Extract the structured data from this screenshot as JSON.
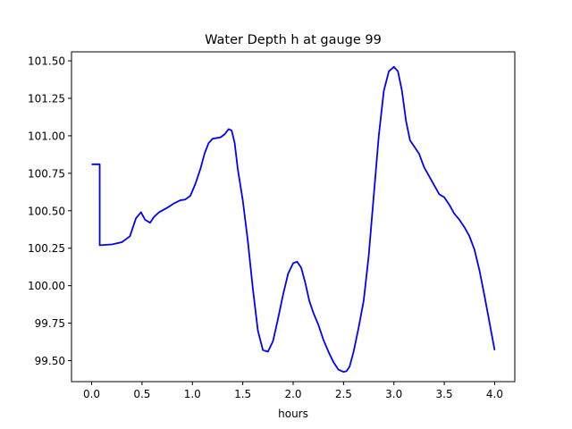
{
  "chart_data": {
    "type": "line",
    "title": "Water Depth h at gauge 99",
    "xlabel": "hours",
    "ylabel": "",
    "xlim": [
      -0.2,
      4.2
    ],
    "ylim": [
      99.36,
      101.56
    ],
    "grid": false,
    "x_ticks": [
      0.0,
      0.5,
      1.0,
      1.5,
      2.0,
      2.5,
      3.0,
      3.5,
      4.0
    ],
    "x_tick_labels": [
      "0.0",
      "0.5",
      "1.0",
      "1.5",
      "2.0",
      "2.5",
      "3.0",
      "3.5",
      "4.0"
    ],
    "y_ticks": [
      99.5,
      99.75,
      100.0,
      100.25,
      100.5,
      100.75,
      101.0,
      101.25,
      101.5
    ],
    "y_tick_labels": [
      "99.50",
      "99.75",
      "100.00",
      "100.25",
      "100.50",
      "100.75",
      "101.00",
      "101.25",
      "101.50"
    ],
    "series": [
      {
        "color": "#0000ff",
        "x": [
          0.0,
          0.08,
          0.0801,
          0.2,
          0.3,
          0.38,
          0.44,
          0.49,
          0.53,
          0.58,
          0.62,
          0.67,
          0.75,
          0.82,
          0.88,
          0.93,
          0.98,
          1.03,
          1.08,
          1.12,
          1.16,
          1.2,
          1.24,
          1.28,
          1.32,
          1.36,
          1.39,
          1.42,
          1.45,
          1.5,
          1.55,
          1.6,
          1.65,
          1.7,
          1.75,
          1.8,
          1.85,
          1.9,
          1.95,
          2.0,
          2.04,
          2.08,
          2.12,
          2.16,
          2.2,
          2.25,
          2.3,
          2.35,
          2.4,
          2.45,
          2.5,
          2.53,
          2.56,
          2.6,
          2.65,
          2.7,
          2.75,
          2.8,
          2.85,
          2.9,
          2.95,
          3.0,
          3.04,
          3.08,
          3.12,
          3.16,
          3.2,
          3.25,
          3.3,
          3.35,
          3.4,
          3.45,
          3.5,
          3.55,
          3.6,
          3.65,
          3.7,
          3.75,
          3.8,
          3.85,
          3.9,
          3.95,
          4.0
        ],
        "y": [
          100.81,
          100.81,
          100.27,
          100.275,
          100.29,
          100.33,
          100.45,
          100.49,
          100.44,
          100.42,
          100.46,
          100.49,
          100.52,
          100.55,
          100.57,
          100.575,
          100.6,
          100.68,
          100.78,
          100.88,
          100.95,
          100.98,
          100.985,
          100.99,
          101.01,
          101.045,
          101.035,
          100.95,
          100.78,
          100.57,
          100.3,
          99.98,
          99.7,
          99.57,
          99.56,
          99.63,
          99.78,
          99.94,
          100.08,
          100.15,
          100.16,
          100.12,
          100.02,
          99.9,
          99.82,
          99.74,
          99.64,
          99.56,
          99.49,
          99.44,
          99.425,
          99.43,
          99.46,
          99.56,
          99.72,
          99.9,
          100.2,
          100.6,
          101.0,
          101.3,
          101.43,
          101.46,
          101.43,
          101.3,
          101.1,
          100.97,
          100.93,
          100.88,
          100.79,
          100.73,
          100.67,
          100.61,
          100.59,
          100.54,
          100.48,
          100.44,
          100.39,
          100.33,
          100.24,
          100.1,
          99.93,
          99.75,
          99.57
        ]
      }
    ]
  }
}
